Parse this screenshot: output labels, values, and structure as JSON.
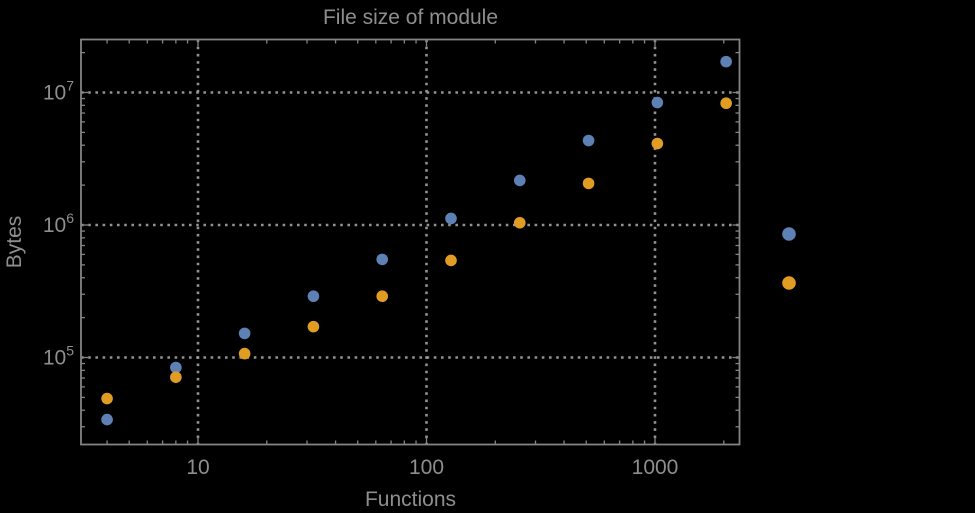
{
  "window": {
    "background_color": "#000000"
  },
  "colors": {
    "frame": "#848484",
    "grid": "#a2a2a2",
    "text": "#8e8e8e",
    "series_blue": "#5e81b5",
    "series_orange": "#e19c24"
  },
  "chart_data": {
    "type": "scatter",
    "title": "File size of module",
    "xlabel": "Functions",
    "ylabel": "Bytes",
    "x_scale": "log10",
    "y_scale": "log10",
    "xlim": [
      3.1,
      2350
    ],
    "ylim": [
      22000,
      24500000
    ],
    "grid": "dotted lines at major (decade) ticks only",
    "legend_position": "outside right of frame, markers only (no visible label text)",
    "x": [
      4,
      8,
      16,
      32,
      64,
      128,
      256,
      512,
      1024,
      2048
    ],
    "series": [
      {
        "name": "series-blue",
        "color": "#5e81b5",
        "values": [
          34000,
          84000,
          152000,
          290000,
          550000,
          1120000,
          2170000,
          4340000,
          8400000,
          17100000
        ]
      },
      {
        "name": "series-orange",
        "color": "#e19c24",
        "values": [
          49000,
          71000,
          107000,
          171000,
          290000,
          540000,
          1040000,
          2060000,
          4120000,
          8300000
        ]
      }
    ],
    "x_major_ticks": [
      10,
      100,
      1000
    ],
    "x_tick_labels": [
      "10",
      "100",
      "1000"
    ],
    "x_minor_ticks": [
      4,
      5,
      6,
      7,
      8,
      9,
      20,
      30,
      40,
      50,
      60,
      70,
      80,
      90,
      200,
      300,
      400,
      500,
      600,
      700,
      800,
      900,
      2000
    ],
    "y_major_ticks": [
      100000,
      1000000,
      10000000
    ],
    "y_tick_labels": [
      "10^5",
      "10^6",
      "10^7"
    ],
    "y_minor_ticks": [
      30000,
      40000,
      50000,
      60000,
      70000,
      80000,
      90000,
      200000,
      300000,
      400000,
      500000,
      600000,
      700000,
      800000,
      900000,
      2000000,
      3000000,
      4000000,
      5000000,
      6000000,
      7000000,
      8000000,
      9000000,
      20000000
    ],
    "legend": {
      "entries": [
        {
          "series": "series-blue",
          "color": "#5e81b5",
          "label": ""
        },
        {
          "series": "series-orange",
          "color": "#e19c24",
          "label": ""
        }
      ]
    }
  }
}
